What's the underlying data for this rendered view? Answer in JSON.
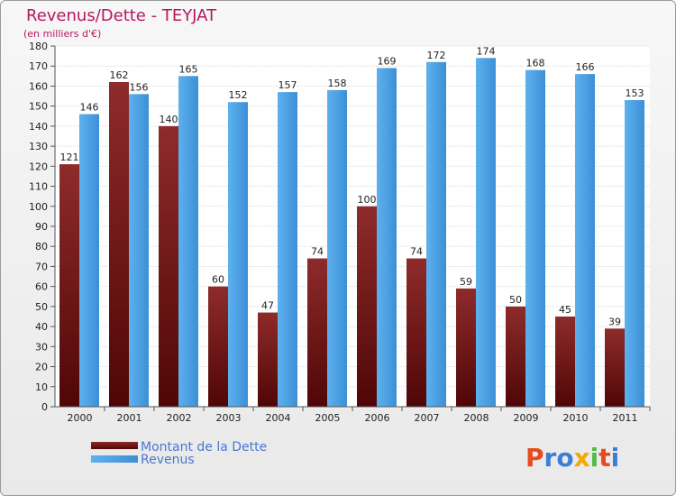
{
  "chart_data": {
    "type": "bar",
    "title": "Revenus/Dette - TEYJAT",
    "subtitle": "(en milliers d'€)",
    "categories": [
      "2000",
      "2001",
      "2002",
      "2003",
      "2004",
      "2005",
      "2006",
      "2007",
      "2008",
      "2009",
      "2010",
      "2011"
    ],
    "ylim": [
      0,
      180
    ],
    "ytick_step": 10,
    "grid": true,
    "series": [
      {
        "name": "Montant de la Dette",
        "color": "#7a1a1a",
        "values": [
          121,
          162,
          140,
          60,
          47,
          74,
          100,
          74,
          59,
          50,
          45,
          39
        ]
      },
      {
        "name": "Revenus",
        "color": "#4ea3e6",
        "values": [
          146,
          156,
          165,
          152,
          157,
          158,
          169,
          172,
          174,
          168,
          166,
          153
        ]
      }
    ],
    "legend_position": "bottom-left"
  },
  "brand": {
    "logo_text": "Proxiti",
    "letter_colors": [
      "#e8491d",
      "#3a7fd6",
      "#3a7fd6",
      "#f2a900",
      "#57b947",
      "#e8491d",
      "#3a7fd6"
    ]
  }
}
